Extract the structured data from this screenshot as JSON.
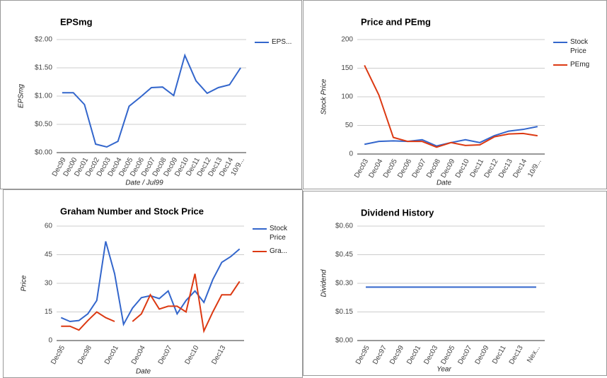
{
  "chart_data": [
    {
      "type": "line",
      "title": "EPSmg",
      "x_label": "Date / Jul99",
      "y_label": "EPSmg",
      "categories": [
        "Dec99",
        "Dec00",
        "Dec01",
        "Dec02",
        "Dec03",
        "Dec04",
        "Dec05",
        "Dec06",
        "Dec07",
        "Dec08",
        "Dec09",
        "Dec10",
        "Dec11",
        "Dec12",
        "Dec13",
        "Dec14",
        "10/9..."
      ],
      "series": [
        {
          "name": "EPS...",
          "color": "#3366cc",
          "values": [
            1.06,
            1.06,
            0.85,
            0.15,
            0.1,
            0.2,
            0.82,
            0.98,
            1.15,
            1.16,
            1.01,
            1.72,
            1.27,
            1.05,
            1.15,
            1.2,
            1.5
          ]
        }
      ],
      "ylim": [
        0,
        2
      ],
      "yticks": [
        {
          "value": 0,
          "label": "$0.00"
        },
        {
          "value": 0.5,
          "label": "$0.50"
        },
        {
          "value": 1,
          "label": "$1.00"
        },
        {
          "value": 1.5,
          "label": "$1.50"
        },
        {
          "value": 2,
          "label": "$2.00"
        }
      ],
      "grid": true,
      "legend": "right"
    },
    {
      "type": "line",
      "title": "Price and PEmg",
      "x_label": "Date",
      "y_label": "Stock Price",
      "categories": [
        "Dec03",
        "Dec04",
        "Dec05",
        "Dec06",
        "Dec07",
        "Dec08",
        "Dec09",
        "Dec10",
        "Dec11",
        "Dec12",
        "Dec13",
        "Dec14",
        "10/9..."
      ],
      "series": [
        {
          "name": "Stock Price",
          "color": "#3366cc",
          "values": [
            17,
            22,
            23,
            22,
            25,
            14,
            20,
            25,
            20,
            32,
            40,
            43,
            48
          ]
        },
        {
          "name": "PEmg",
          "color": "#dc3912",
          "values": [
            155,
            103,
            29,
            22,
            22,
            12,
            20,
            15,
            16,
            30,
            35,
            36,
            32
          ]
        }
      ],
      "ylim": [
        0,
        200
      ],
      "yticks": [
        0,
        50,
        100,
        150,
        200
      ],
      "grid": true,
      "legend": "right"
    },
    {
      "type": "line",
      "title": "Graham Number and Stock Price",
      "x_label": "Date",
      "y_label": "Price",
      "categories": [
        "Dec95",
        null,
        null,
        "Dec98",
        null,
        null,
        "Dec01",
        null,
        null,
        "Dec04",
        null,
        null,
        "Dec07",
        null,
        null,
        "Dec10",
        null,
        null,
        "Dec13",
        null,
        null
      ],
      "series": [
        {
          "name": "Stock Price",
          "color": "#3366cc",
          "values": [
            12,
            10,
            10.5,
            14,
            21,
            52,
            35,
            8.5,
            17,
            22.5,
            23.5,
            22,
            26,
            14,
            21,
            26,
            20,
            32,
            41,
            44,
            48
          ]
        },
        {
          "name": "Gra...",
          "color": "#dc3912",
          "values": [
            7.5,
            7.5,
            5.5,
            10.5,
            15,
            12,
            10,
            null,
            10,
            14,
            24,
            16.5,
            18,
            18,
            15,
            35,
            5,
            15,
            24,
            24,
            31
          ]
        }
      ],
      "ylim": [
        0,
        60
      ],
      "yticks": [
        0,
        15,
        30,
        45,
        60
      ],
      "grid": true,
      "legend": "right"
    },
    {
      "type": "line",
      "title": "Dividend History",
      "x_label": "Year",
      "y_label": "Dividend",
      "categories": [
        "Dec95",
        "Dec97",
        "Dec99",
        "Dec01",
        "Dec03",
        "Dec05",
        "Dec07",
        "Dec09",
        "Dec11",
        "Dec13",
        "Nex..."
      ],
      "series": [
        {
          "color": "#3366cc",
          "values": [
            0.28,
            0.28,
            0.28,
            0.28,
            0.28,
            0.28,
            0.28,
            0.28,
            0.28,
            0.28,
            0.28
          ]
        }
      ],
      "ylim": [
        0,
        0.6
      ],
      "yticks": [
        {
          "value": 0,
          "label": "$0.00"
        },
        {
          "value": 0.15,
          "label": "$0.15"
        },
        {
          "value": 0.3,
          "label": "$0.30"
        },
        {
          "value": 0.45,
          "label": "$0.45"
        },
        {
          "value": 0.6,
          "label": "$0.60"
        }
      ],
      "grid": true
    }
  ]
}
